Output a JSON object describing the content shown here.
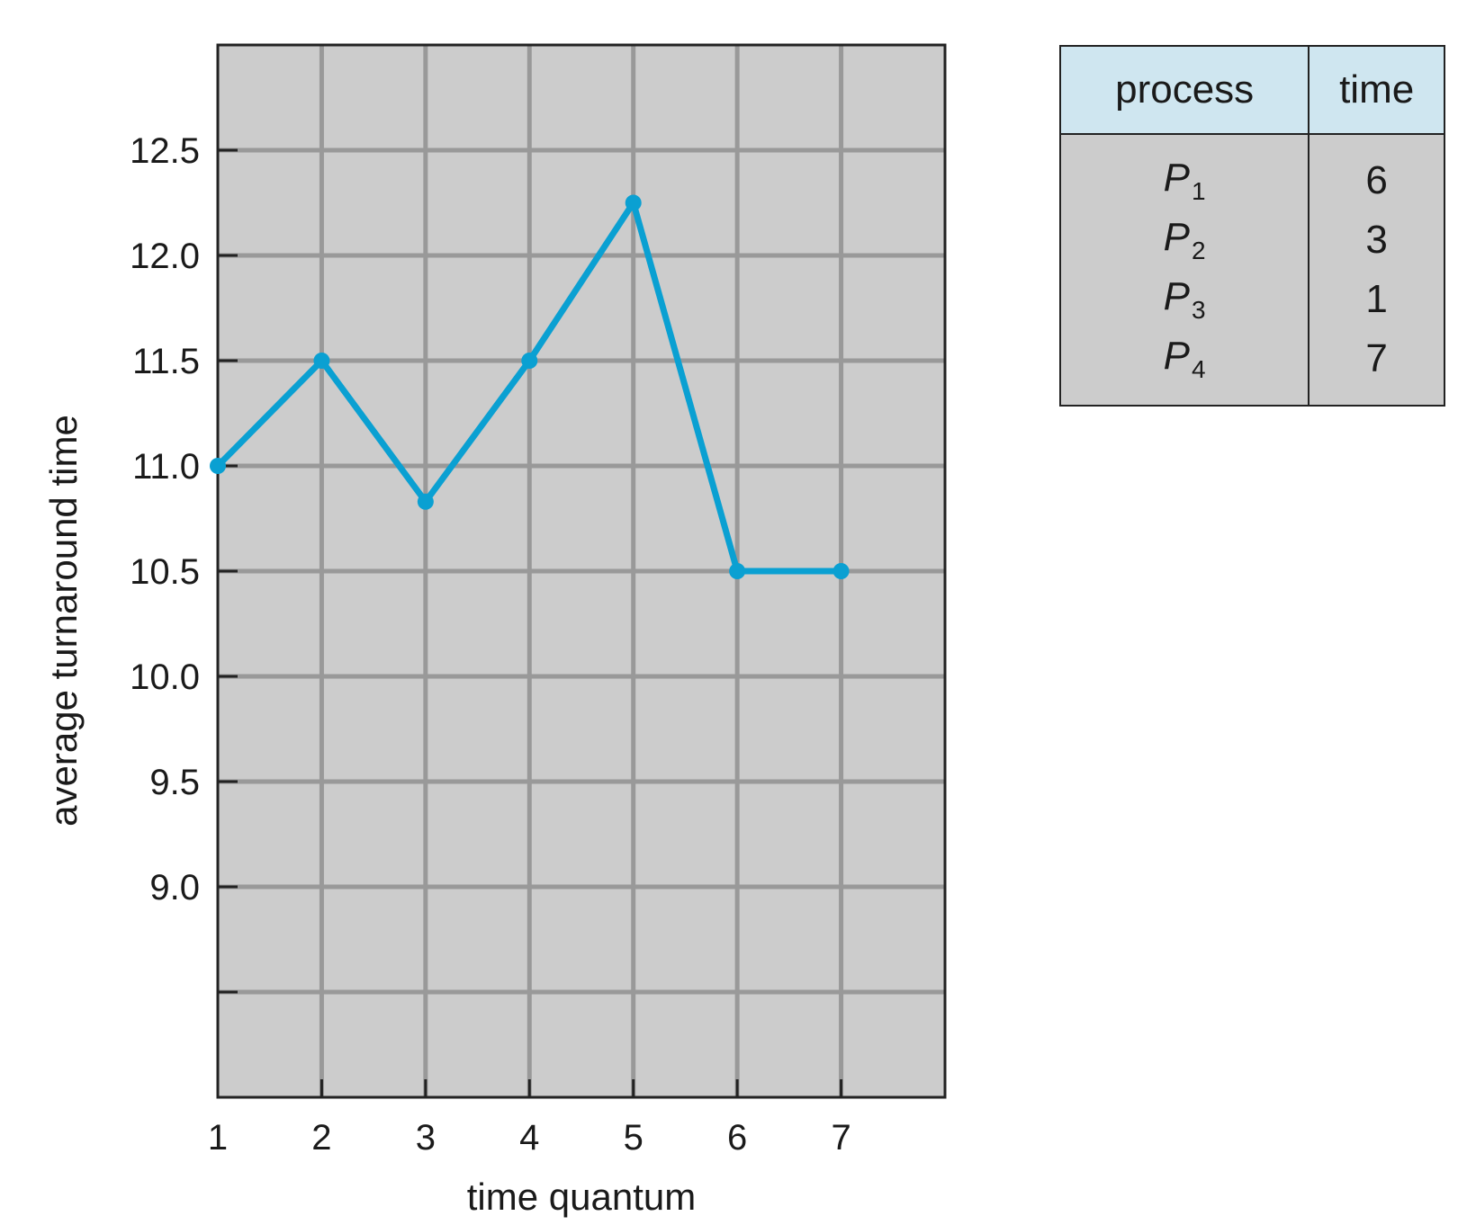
{
  "chart_data": {
    "type": "line",
    "xlabel": "time quantum",
    "ylabel": "average turnaround time",
    "x": [
      1,
      2,
      3,
      4,
      5,
      6,
      7
    ],
    "values": [
      11.0,
      11.5,
      10.83,
      11.5,
      12.25,
      10.5,
      10.5
    ],
    "xlim": [
      1,
      8
    ],
    "ylim": [
      8.0,
      13.0
    ],
    "xticks": [
      "1",
      "2",
      "3",
      "4",
      "5",
      "6",
      "7"
    ],
    "yticks": [
      "9.0",
      "9.5",
      "10.0",
      "10.5",
      "11.0",
      "11.5",
      "12.0",
      "12.5"
    ],
    "grid": true,
    "line_color": "#0aa0d2",
    "plot_bg": "#cccccc",
    "grid_color": "#999999"
  },
  "table": {
    "headers": [
      "process",
      "time"
    ],
    "rows": [
      {
        "name": "P",
        "sub": "1",
        "time": "6"
      },
      {
        "name": "P",
        "sub": "2",
        "time": "3"
      },
      {
        "name": "P",
        "sub": "3",
        "time": "1"
      },
      {
        "name": "P",
        "sub": "4",
        "time": "7"
      }
    ]
  }
}
